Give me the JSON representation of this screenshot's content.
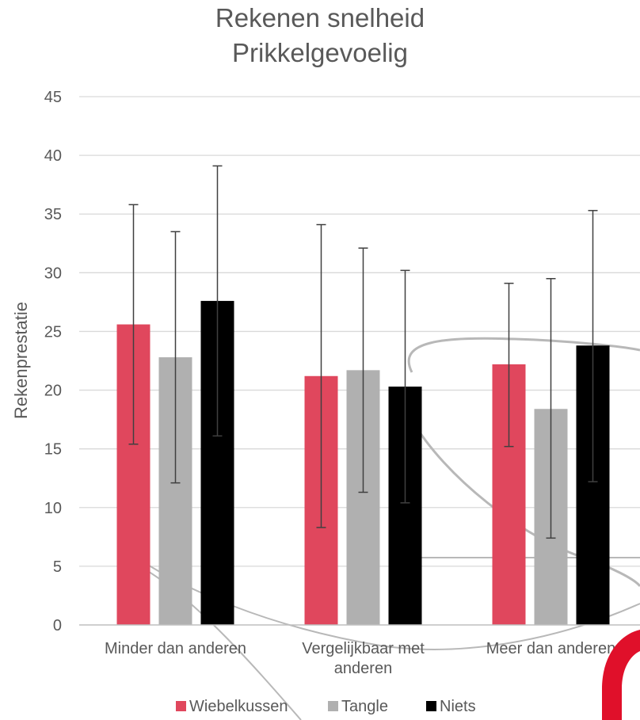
{
  "chart_data": {
    "type": "bar",
    "title": [
      "Rekenen snelheid",
      "Prikkelgevoelig"
    ],
    "ylabel": "Rekenprestatie",
    "xlabel": "",
    "ylim": [
      0,
      45
    ],
    "yticks": [
      0,
      5,
      10,
      15,
      20,
      25,
      30,
      35,
      40,
      45
    ],
    "grid": true,
    "legend": "bottom",
    "categories": [
      [
        "Minder dan anderen"
      ],
      [
        "Vergelijkbaar met",
        "anderen"
      ],
      [
        "Meer dan anderen"
      ]
    ],
    "series": [
      {
        "name": "Wiebelkussen",
        "color": "#e0475d",
        "values": [
          25.6,
          21.2,
          22.2
        ],
        "err_low": [
          15.4,
          8.3,
          15.2
        ],
        "err_high": [
          35.8,
          34.1,
          29.1
        ]
      },
      {
        "name": "Tangle",
        "color": "#b0b0b0",
        "values": [
          22.8,
          21.7,
          18.4
        ],
        "err_low": [
          12.1,
          11.3,
          7.4
        ],
        "err_high": [
          33.5,
          32.1,
          29.5
        ]
      },
      {
        "name": "Niets",
        "color": "#000000",
        "values": [
          27.6,
          20.3,
          23.8
        ],
        "err_low": [
          16.1,
          10.4,
          12.2
        ],
        "err_high": [
          39.1,
          30.2,
          35.3
        ]
      }
    ],
    "error_bar_color": "#404040",
    "grid_color": "#d9d9d9",
    "axis_color": "#bfbfbf"
  }
}
